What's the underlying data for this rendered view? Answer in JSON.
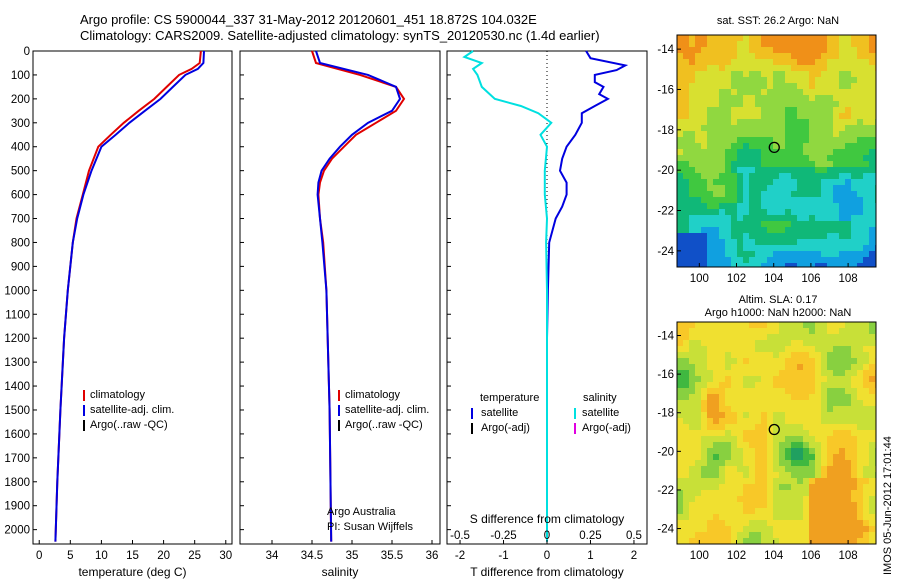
{
  "header": {
    "line1": "Argo profile: CS 5900044_337 31-May-2012 20120601_451 18.872S 104.032E",
    "line2": "Climatology: CARS2009. Satellite-adjusted climatology: synTS_20120530.nc (1.4d earlier)"
  },
  "colors": {
    "climatology": "#e00000",
    "satellite": "#0000e0",
    "argo": "#000000",
    "sat_s": "#00e0e0",
    "argo_s": "#e000e0"
  },
  "chart_data": [
    {
      "type": "line",
      "xlabel": "temperature (deg C)",
      "xlim": [
        -1,
        31
      ],
      "ylim": [
        2060,
        0
      ],
      "xticks": [
        "0",
        "5",
        "10",
        "15",
        "20",
        "25",
        "30"
      ],
      "yticks": [
        "0",
        "100",
        "200",
        "300",
        "400",
        "500",
        "600",
        "700",
        "800",
        "900",
        "1000",
        "1100",
        "1200",
        "1300",
        "1400",
        "1500",
        "1600",
        "1700",
        "1800",
        "1900",
        "2000"
      ],
      "legend": [
        "climatology",
        "satellite-adj. clim.",
        "Argo(..raw -QC)"
      ],
      "series": [
        {
          "key": "climatology",
          "depth": [
            0,
            50,
            75,
            100,
            150,
            200,
            250,
            300,
            350,
            400,
            500,
            600,
            700,
            800,
            1000,
            1200,
            1500,
            1800,
            2050
          ],
          "values": [
            26,
            25.8,
            24.5,
            22.5,
            20.5,
            18.5,
            16,
            13.6,
            11.5,
            9.5,
            8,
            7,
            6,
            5.4,
            4.6,
            4,
            3.4,
            2.9,
            2.6
          ]
        },
        {
          "key": "satellite",
          "depth": [
            0,
            50,
            75,
            100,
            150,
            200,
            250,
            300,
            350,
            400,
            500,
            600,
            700,
            800,
            1000,
            1200,
            1500,
            1800,
            2050
          ],
          "values": [
            26.5,
            26.4,
            25.5,
            23.5,
            21.5,
            19.5,
            17,
            14.5,
            12.3,
            10,
            8.4,
            7.1,
            6.1,
            5.4,
            4.6,
            4,
            3.4,
            2.9,
            2.6
          ]
        }
      ]
    },
    {
      "type": "line",
      "xlabel": "salinity",
      "xlim": [
        33.6,
        36.1
      ],
      "ylim": [
        2060,
        0
      ],
      "xticks": [
        "34",
        "34.5",
        "35",
        "35.5",
        "36"
      ],
      "legend": [
        "climatology",
        "satellite-adj. clim.",
        "Argo(..raw -QC)"
      ],
      "annotation": [
        "Argo Australia",
        "PI: Susan Wijffels"
      ],
      "series": [
        {
          "key": "climatology",
          "depth": [
            0,
            50,
            100,
            150,
            200,
            250,
            300,
            350,
            400,
            450,
            500,
            550,
            600,
            700,
            800,
            1000,
            1500,
            2050
          ],
          "values": [
            34.5,
            34.55,
            35.1,
            35.55,
            35.65,
            35.55,
            35.3,
            35.05,
            34.9,
            34.75,
            34.65,
            34.6,
            34.58,
            34.6,
            34.64,
            34.68,
            34.72,
            34.74
          ]
        },
        {
          "key": "satellite",
          "depth": [
            0,
            50,
            100,
            150,
            200,
            250,
            300,
            350,
            400,
            450,
            500,
            550,
            600,
            700,
            800,
            1000,
            1500,
            2050
          ],
          "values": [
            34.55,
            34.6,
            35.2,
            35.55,
            35.6,
            35.5,
            35.2,
            35.0,
            34.85,
            34.72,
            34.62,
            34.58,
            34.57,
            34.6,
            34.63,
            34.68,
            34.72,
            34.74
          ]
        }
      ]
    },
    {
      "type": "line",
      "xlabel": "T difference from climatology",
      "xlabel2": "S difference from climatology",
      "xlim": [
        -2.3,
        2.3
      ],
      "ylim": [
        2060,
        0
      ],
      "xticks": [
        "-2",
        "-1",
        "0",
        "1",
        "2"
      ],
      "xticks_s": [
        "-0.5",
        "-0.25",
        "0",
        "0.25",
        "0.5"
      ],
      "legend_t": [
        "temperature",
        "satellite",
        "Argo(-adj)"
      ],
      "legend_s": [
        "salinity",
        "satellite",
        "Argo(-adj)"
      ],
      "series": [
        {
          "key": "T satellite",
          "depth": [
            0,
            30,
            60,
            80,
            100,
            130,
            150,
            180,
            200,
            230,
            260,
            300,
            350,
            400,
            450,
            500,
            550,
            600,
            650,
            700,
            800,
            1000,
            1200,
            1500,
            2050
          ],
          "values": [
            0.9,
            1.0,
            1.8,
            1.6,
            1.1,
            1.1,
            1.3,
            1.2,
            1.4,
            1.1,
            0.8,
            0.8,
            0.65,
            0.45,
            0.35,
            0.3,
            0.45,
            0.45,
            0.35,
            0.2,
            0.05,
            0.02,
            0,
            0,
            0
          ]
        },
        {
          "key": "S satellite",
          "depth": [
            0,
            25,
            50,
            75,
            100,
            150,
            200,
            230,
            260,
            300,
            350,
            400,
            500,
            600,
            700,
            800,
            1000,
            1200,
            1500,
            2050
          ],
          "values": [
            -1.7,
            -1.9,
            -1.5,
            -1.7,
            -1.6,
            -1.5,
            -1.2,
            -0.6,
            -0.2,
            0.1,
            -0.15,
            0,
            -0.05,
            -0.05,
            0,
            -0.02,
            0,
            0,
            0,
            0
          ]
        }
      ]
    },
    {
      "type": "heatmap",
      "title": "sat. SST: 26.2 Argo: NaN",
      "xlim": [
        98.8,
        109.5
      ],
      "ylim": [
        -24.8,
        -13.3
      ],
      "xticks": [
        "100",
        "102",
        "104",
        "106",
        "108"
      ],
      "yticks": [
        "-14",
        "-16",
        "-18",
        "-20",
        "-22",
        "-24"
      ],
      "marker": {
        "lon": 104.03,
        "lat": -18.87
      }
    },
    {
      "type": "heatmap",
      "title": "Altim. SLA: 0.17",
      "subtitle": "Argo h1000: NaN h2000: NaN",
      "xlim": [
        98.8,
        109.5
      ],
      "ylim": [
        -24.8,
        -13.3
      ],
      "xticks": [
        "100",
        "102",
        "104",
        "106",
        "108"
      ],
      "yticks": [
        "-14",
        "-16",
        "-18",
        "-20",
        "-22",
        "-24"
      ],
      "marker": {
        "lon": 104.03,
        "lat": -18.87
      }
    }
  ],
  "footer": {
    "credit": "IMOS 05-Jun-2012 17:01:44"
  }
}
